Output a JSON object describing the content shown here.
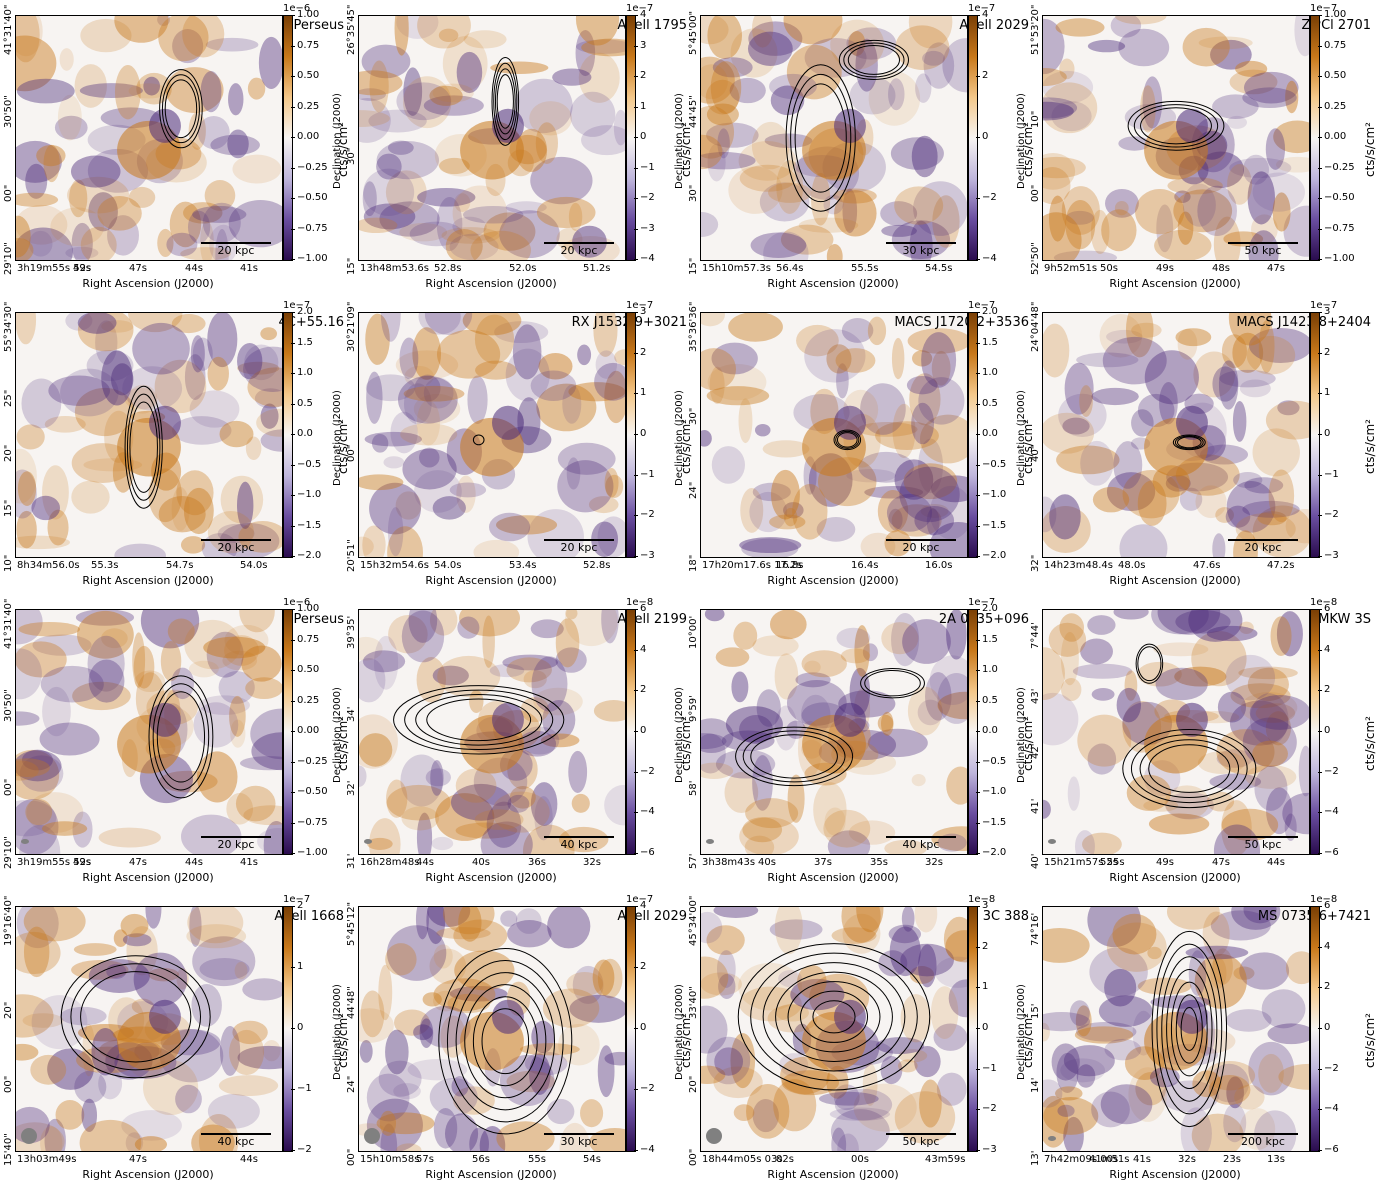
{
  "colors": {
    "orange": "#c8781a",
    "purple": "#4b2a7a",
    "neutral": "#f7f4f2",
    "contour": "#000000"
  },
  "common": {
    "xlabel": "Right Ascension (J2000)",
    "ylabel": "Declination (J2000)",
    "cbar_label": "cts/s/cm²"
  },
  "panels": [
    {
      "source": "Perseus",
      "scale": "20 kpc",
      "exp": "1e−6",
      "cticks": [
        "1.00",
        "0.75",
        "0.50",
        "0.25",
        "0.00",
        "−0.25",
        "−0.50",
        "−0.75",
        "−1.00"
      ],
      "xticks": [
        "3h19m55s 52s",
        "49s",
        "47s",
        "44s",
        "41s"
      ],
      "yticks": [
        "41°31'40\"",
        "30'50\"",
        "00\"",
        "29'10\""
      ],
      "beam": false
    },
    {
      "source": "Abell 1795",
      "scale": "20 kpc",
      "exp": "1e−7",
      "cticks": [
        "4",
        "3",
        "2",
        "1",
        "0",
        "−1",
        "−2",
        "−3",
        "−4"
      ],
      "xticks": [
        "13h48m53.6s",
        "52.8s",
        "52.0s",
        "51.2s"
      ],
      "yticks": [
        "26°35'45\"",
        "30\"",
        "15\""
      ],
      "beam": false
    },
    {
      "source": "Abell 2029",
      "scale": "30 kpc",
      "exp": "1e−7",
      "cticks": [
        "4",
        "2",
        "0",
        "−2",
        "−4"
      ],
      "xticks": [
        "15h10m57.3s",
        "56.4s",
        "55.5s",
        "54.5s"
      ],
      "yticks": [
        "5°45'00\"",
        "44'45\"",
        "30\"",
        "15\""
      ],
      "beam": false
    },
    {
      "source": "ZwCl 2701",
      "scale": "50 kpc",
      "exp": "1e−7",
      "cticks": [
        "1.00",
        "0.75",
        "0.50",
        "0.25",
        "0.00",
        "−0.25",
        "−0.50",
        "−0.75",
        "−1.00"
      ],
      "xticks": [
        "9h52m51s",
        "50s",
        "49s",
        "48s",
        "47s"
      ],
      "yticks": [
        "51°53'20\"",
        "10\"",
        "00\"",
        "52'50\""
      ],
      "beam": false
    },
    {
      "source": "4C+55.16",
      "scale": "20 kpc",
      "exp": "1e−7",
      "cticks": [
        "2.0",
        "1.5",
        "1.0",
        "0.5",
        "0.0",
        "−0.5",
        "−1.0",
        "−1.5",
        "−2.0"
      ],
      "xticks": [
        "8h34m56.0s",
        "55.3s",
        "54.7s",
        "54.0s"
      ],
      "yticks": [
        "55°34'30\"",
        "25\"",
        "20\"",
        "15\"",
        "10\""
      ],
      "beam": false
    },
    {
      "source": "RX J1532.9+3021",
      "scale": "20 kpc",
      "exp": "1e−7",
      "cticks": [
        "3",
        "2",
        "1",
        "0",
        "−1",
        "−2",
        "−3"
      ],
      "xticks": [
        "15h32m54.6s",
        "54.0s",
        "53.4s",
        "52.8s"
      ],
      "yticks": [
        "30°21'09\"",
        "00\"",
        "20'51\""
      ],
      "beam": false
    },
    {
      "source": "MACS J1720.2+3536",
      "scale": "20 kpc",
      "exp": "1e−7",
      "cticks": [
        "2.0",
        "1.5",
        "1.0",
        "0.5",
        "0.0",
        "−0.5",
        "−1.0",
        "−1.5",
        "−2.0"
      ],
      "xticks": [
        "17h20m17.6s 17.2s",
        "16.8s",
        "16.4s",
        "16.0s"
      ],
      "yticks": [
        "35°36'36\"",
        "30\"",
        "24\"",
        "18\""
      ],
      "beam": false
    },
    {
      "source": "MACS J1423.8+2404",
      "scale": "20 kpc",
      "exp": "1e−7",
      "cticks": [
        "3",
        "2",
        "1",
        "0",
        "−1",
        "−2",
        "−3"
      ],
      "xticks": [
        "14h23m48.4s",
        "48.0s",
        "47.6s",
        "47.2s"
      ],
      "yticks": [
        "24°04'48\"",
        "40\"",
        "32\""
      ],
      "beam": false
    },
    {
      "source": "Perseus",
      "scale": "20 kpc",
      "exp": "1e−6",
      "cticks": [
        "1.00",
        "0.75",
        "0.50",
        "0.25",
        "0.00",
        "−0.25",
        "−0.50",
        "−0.75",
        "−1.00"
      ],
      "xticks": [
        "3h19m55s 52s",
        "49s",
        "47s",
        "44s",
        "41s"
      ],
      "yticks": [
        "41°31'40\"",
        "30'50\"",
        "00\"",
        "29'10\""
      ],
      "beam": true
    },
    {
      "source": "Abell 2199",
      "scale": "40 kpc",
      "exp": "1e−8",
      "cticks": [
        "6",
        "4",
        "2",
        "0",
        "−2",
        "−4",
        "−6"
      ],
      "xticks": [
        "16h28m48s",
        "44s",
        "40s",
        "36s",
        "32s"
      ],
      "yticks": [
        "39°35'",
        "34'",
        "32'",
        "31'"
      ],
      "beam": true
    },
    {
      "source": "2A 0335+096",
      "scale": "40 kpc",
      "exp": "1e−7",
      "cticks": [
        "2.0",
        "1.5",
        "1.0",
        "0.5",
        "0.0",
        "−0.5",
        "−1.0",
        "−1.5",
        "−2.0"
      ],
      "xticks": [
        "3h38m43s",
        "40s",
        "37s",
        "35s",
        "32s"
      ],
      "yticks": [
        "10°00'",
        "9°59'",
        "58'",
        "57'"
      ],
      "beam": true
    },
    {
      "source": "MKW 3S",
      "scale": "50 kpc",
      "exp": "1e−8",
      "cticks": [
        "6",
        "4",
        "2",
        "0",
        "−2",
        "−4",
        "−6"
      ],
      "xticks": [
        "15h21m57s 55s",
        "52s",
        "49s",
        "47s",
        "44s"
      ],
      "yticks": [
        "7°44'",
        "43'",
        "42'",
        "41'",
        "40'"
      ],
      "beam": true
    },
    {
      "source": "Abell 1668",
      "scale": "40 kpc",
      "exp": "1e−7",
      "cticks": [
        "2",
        "1",
        "0",
        "−1",
        "−2"
      ],
      "xticks": [
        "13h03m49s",
        "47s",
        "44s"
      ],
      "yticks": [
        "19°16'40\"",
        "20\"",
        "00\"",
        "15'40\""
      ],
      "beam": true
    },
    {
      "source": "Abell 2029",
      "scale": "30 kpc",
      "exp": "1e−7",
      "cticks": [
        "4",
        "2",
        "0",
        "−2",
        "−4"
      ],
      "xticks": [
        "15h10m58s",
        "57s",
        "56s",
        "55s",
        "54s"
      ],
      "yticks": [
        "5°45'12\"",
        "44'48\"",
        "24\"",
        "00\""
      ],
      "beam": true
    },
    {
      "source": "3C 388",
      "scale": "50 kpc",
      "exp": "1e−8",
      "cticks": [
        "3",
        "2",
        "1",
        "0",
        "−1",
        "−2",
        "−3"
      ],
      "xticks": [
        "18h44m05s 03s",
        "02s",
        "00s",
        "43m59s"
      ],
      "yticks": [
        "45°34'00\"",
        "33'40\"",
        "20\"",
        "00\""
      ],
      "beam": true
    },
    {
      "source": "MS 0735.6+7421",
      "scale": "200 kpc",
      "exp": "1e−8",
      "cticks": [
        "6",
        "4",
        "2",
        "0",
        "−2",
        "−4",
        "−6"
      ],
      "xticks": [
        "7h42m09s 00s",
        "41m51s",
        "41s",
        "32s",
        "23s",
        "13s"
      ],
      "yticks": [
        "74°16'",
        "15'",
        "14'",
        "13'"
      ],
      "beam": true
    }
  ]
}
